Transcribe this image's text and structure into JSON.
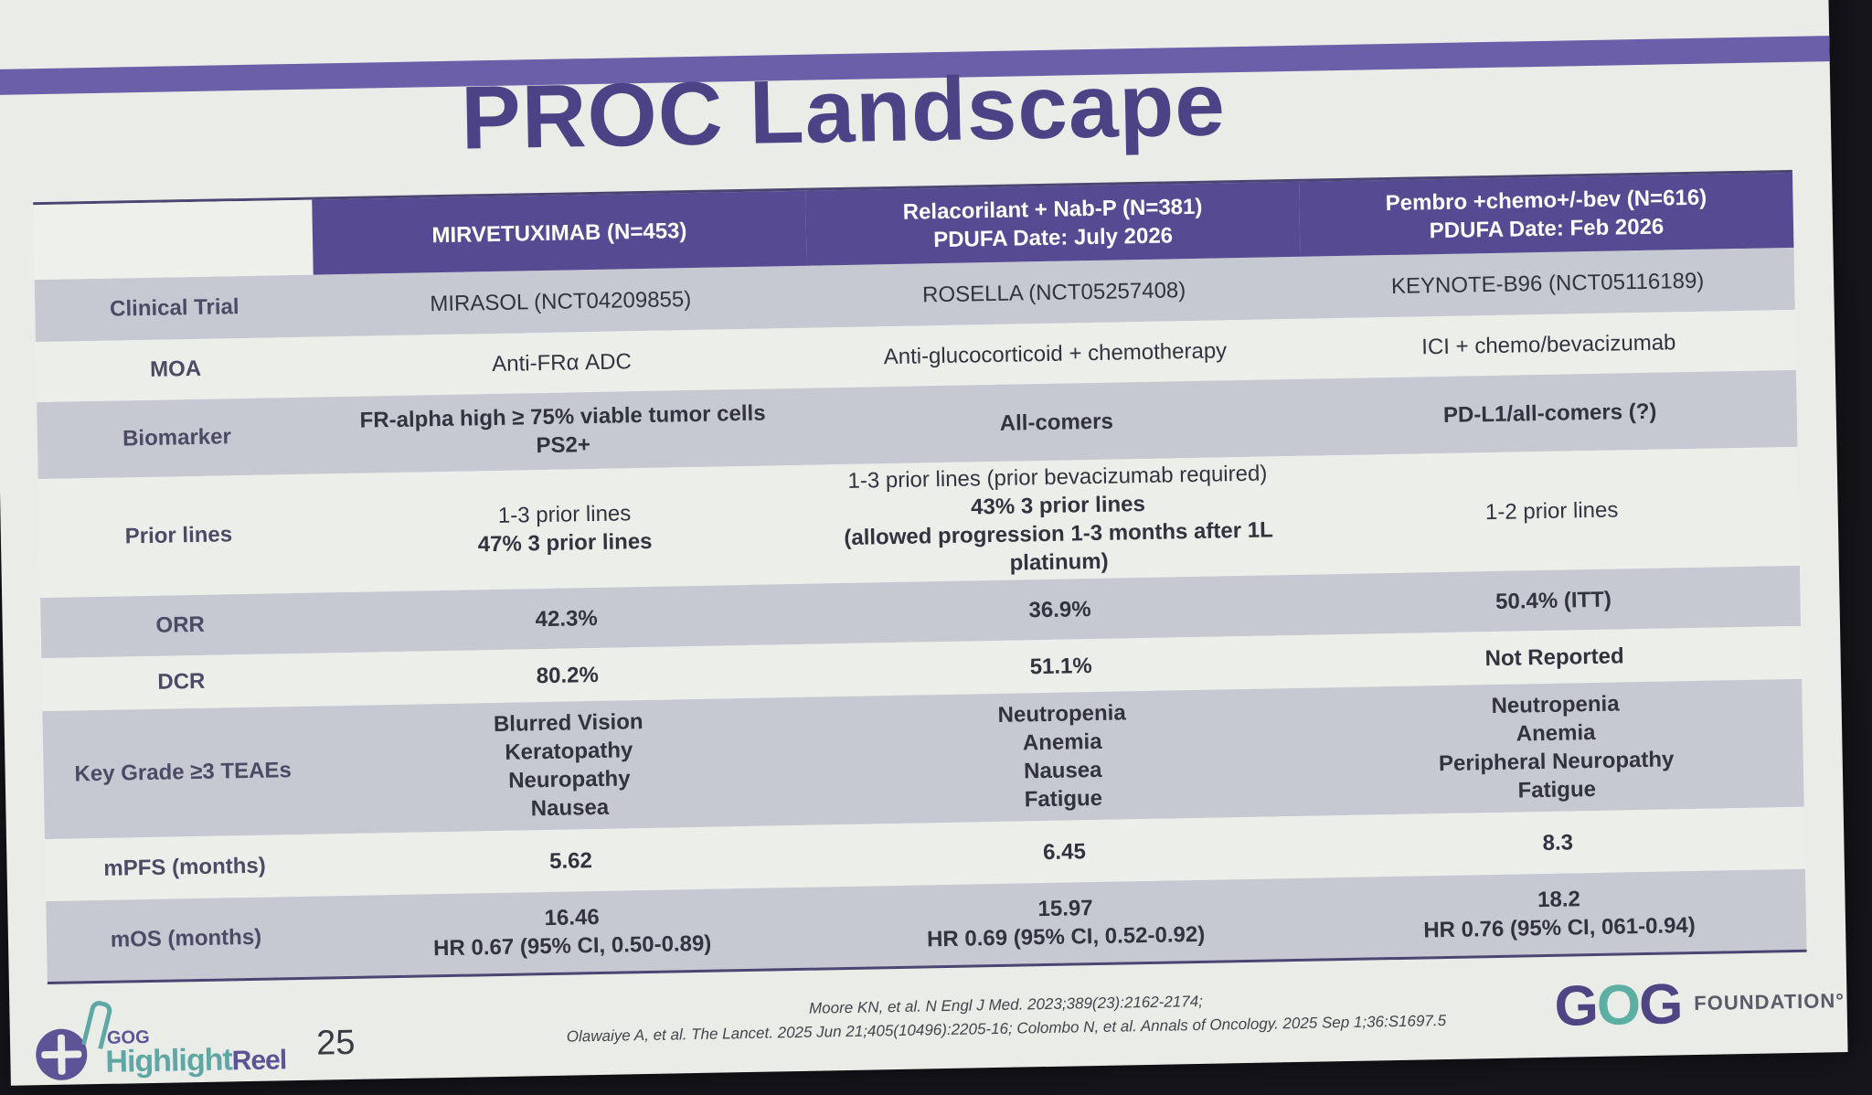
{
  "slide": {
    "title": "PROC Landscape",
    "slide_number": "25"
  },
  "table": {
    "columns": [
      {
        "line1": "MIRVETUXIMAB (N=453)",
        "line2": ""
      },
      {
        "line1": "Relacorilant + Nab-P (N=381)",
        "line2": "PDUFA Date: July 2026"
      },
      {
        "line1": "Pembro +chemo+/-bev (N=616)",
        "line2": "PDUFA Date: Feb 2026"
      }
    ],
    "rows": [
      {
        "label": "Clinical Trial",
        "shade": true,
        "cells": [
          [
            "MIRASOL (NCT04209855)"
          ],
          [
            "ROSELLA (NCT05257408)"
          ],
          [
            "KEYNOTE-B96 (NCT05116189)"
          ]
        ]
      },
      {
        "label": "MOA",
        "shade": false,
        "cells": [
          [
            "Anti-FRα ADC"
          ],
          [
            "Anti-glucocorticoid + chemotherapy"
          ],
          [
            "ICI + chemo/bevacizumab"
          ]
        ]
      },
      {
        "label": "Biomarker",
        "shade": true,
        "cells": [
          [
            "FR-alpha high ≥ 75% viable tumor cells",
            "PS2+"
          ],
          [
            "All-comers"
          ],
          [
            "PD-L1/all-comers (?)"
          ]
        ]
      },
      {
        "label": "Prior lines",
        "shade": false,
        "cells": [
          [
            "1-3 prior lines",
            "47% 3 prior lines"
          ],
          [
            "1-3 prior lines (prior bevacizumab required)",
            "43% 3 prior lines",
            "(allowed progression 1-3 months after 1L",
            "platinum)"
          ],
          [
            "1-2 prior lines"
          ]
        ]
      },
      {
        "label": "ORR",
        "shade": true,
        "cells": [
          [
            "42.3%"
          ],
          [
            "36.9%"
          ],
          [
            "50.4% (ITT)"
          ]
        ]
      },
      {
        "label": "DCR",
        "shade": false,
        "cells": [
          [
            "80.2%"
          ],
          [
            "51.1%"
          ],
          [
            "Not Reported"
          ]
        ]
      },
      {
        "label": "Key Grade ≥3 TEAEs",
        "shade": true,
        "cells": [
          [
            "Blurred Vision",
            "Keratopathy",
            "Neuropathy",
            "Nausea"
          ],
          [
            "Neutropenia",
            "Anemia",
            "Nausea",
            "Fatigue"
          ],
          [
            "Neutropenia",
            "Anemia",
            "Peripheral Neuropathy",
            "Fatigue"
          ]
        ]
      },
      {
        "label": "mPFS (months)",
        "shade": false,
        "cells": [
          [
            "5.62"
          ],
          [
            "6.45"
          ],
          [
            "8.3"
          ]
        ]
      },
      {
        "label": "mOS (months)",
        "shade": true,
        "cells": [
          [
            "16.46",
            "HR 0.67 (95% CI, 0.50-0.89)"
          ],
          [
            "15.97",
            "HR 0.69 (95% CI, 0.52-0.92)"
          ],
          [
            "18.2",
            "HR 0.76 (95% CI, 061-0.94)"
          ]
        ]
      }
    ]
  },
  "footer": {
    "references": [
      "Moore KN, et al. N Engl J Med. 2023;389(23):2162-2174;",
      "Olawaiye A, et al. The Lancet. 2025 Jun 21;405(10496):2205-16; Colombo N, et al. Annals of Oncology. 2025 Sep 1;36:S1697.5"
    ],
    "left_logo": {
      "small": "GOG",
      "main": "Highlight",
      "suffix": "Reel"
    },
    "right_logo": {
      "mark_g1": "G",
      "mark_o": "O",
      "mark_g2": "G",
      "text": "FOUNDATION°"
    }
  },
  "colors": {
    "header_purple": "#564a93",
    "title_purple": "#4c4387",
    "row_shade": "#c6c8d2",
    "teal": "#5fa7a5"
  }
}
